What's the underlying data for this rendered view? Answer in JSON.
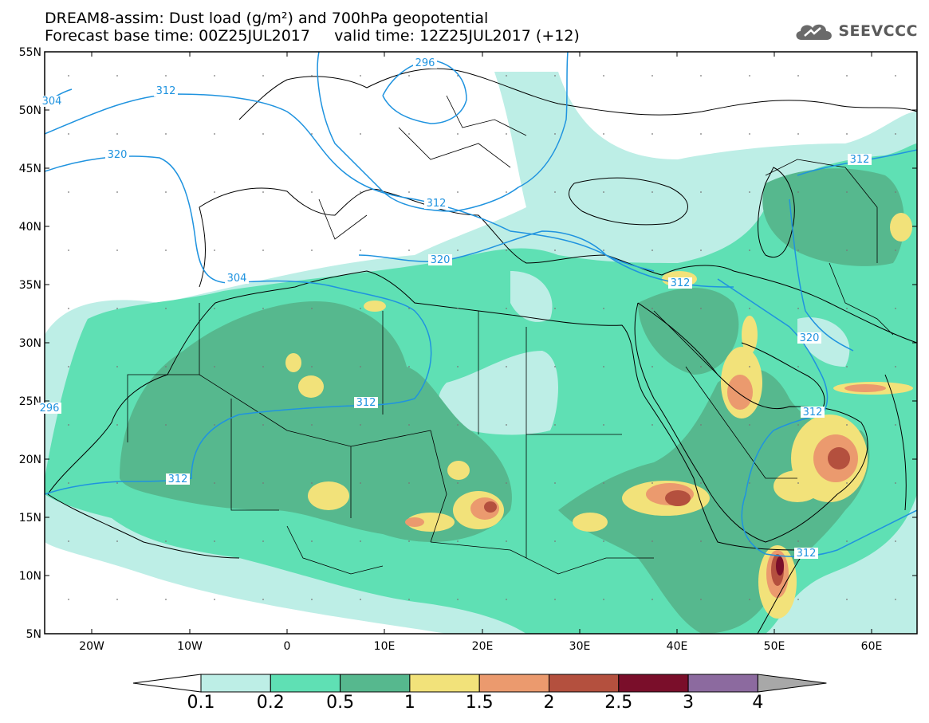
{
  "header": {
    "line1": "DREAM8-assim: Dust load (g/m²) and 700hPa geopotential",
    "line2": "Forecast base time: 00Z25JUL2017     valid time: 12Z25JUL2017 (+12)"
  },
  "logo": {
    "text": "SEEVCCC",
    "icon": "cloud-icon"
  },
  "map": {
    "lat_labels": [
      "55N",
      "50N",
      "45N",
      "40N",
      "35N",
      "30N",
      "25N",
      "20N",
      "15N",
      "10N",
      "5N"
    ],
    "lon_labels": [
      "20W",
      "10W",
      "0",
      "10E",
      "20E",
      "30E",
      "40E",
      "50E",
      "60E"
    ],
    "contour_labels": [
      "296",
      "304",
      "312",
      "320",
      "312",
      "320",
      "304",
      "312",
      "312",
      "312",
      "320",
      "312",
      "312",
      "312",
      "296"
    ]
  },
  "colorbar": {
    "labels": [
      "0.1",
      "0.2",
      "0.5",
      "1",
      "1.5",
      "2",
      "2.5",
      "3",
      "4"
    ],
    "colors": [
      "#bdeee6",
      "#5fe0b4",
      "#56b88e",
      "#f2e27a",
      "#eb9a6e",
      "#b4503e",
      "#7a0e2a",
      "#8c6a9f",
      "#a8a8a8"
    ]
  },
  "colors": {
    "contour": "#1f93df",
    "level1": "#bdeee6",
    "level2": "#5fe0b4",
    "level3": "#56b88e",
    "level4": "#f2e27a",
    "level5": "#eb9a6e",
    "level6": "#b4503e",
    "level7": "#7a0e2a"
  }
}
